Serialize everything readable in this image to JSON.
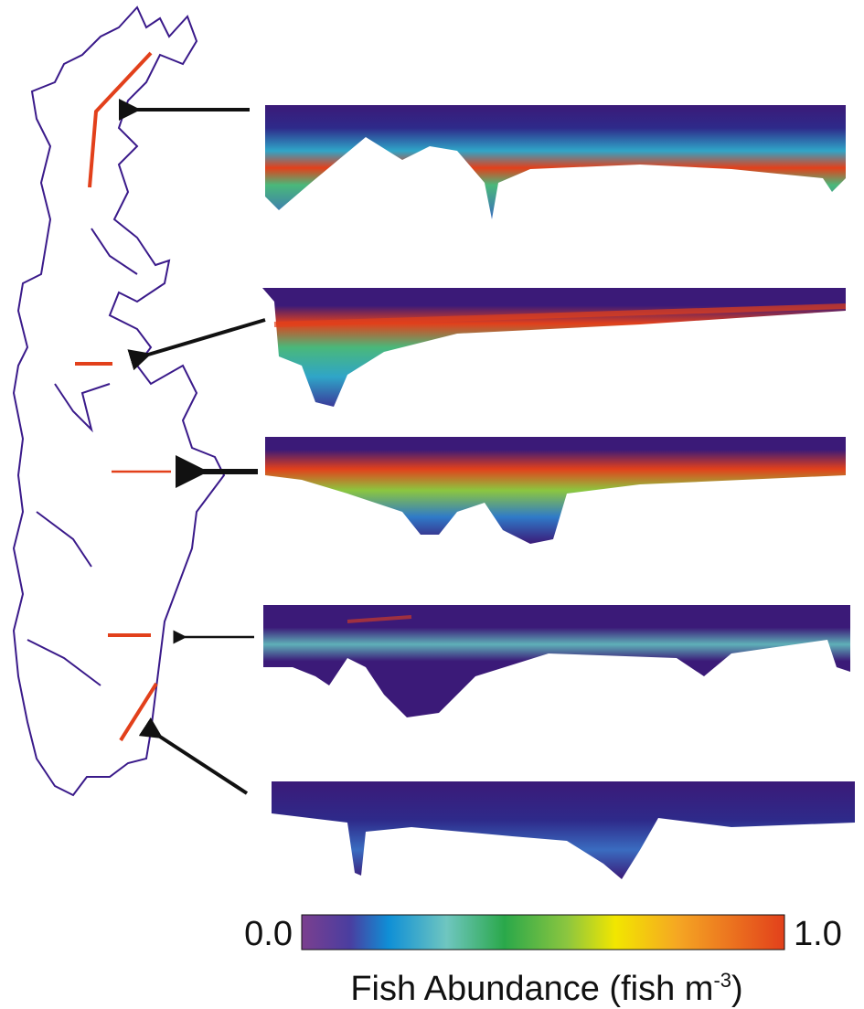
{
  "colorbar": {
    "min_label": "0.0",
    "max_label": "1.0",
    "label": "Fish Abundance (fish m",
    "label_superscript": "-3",
    "label_end": ")"
  }
}
